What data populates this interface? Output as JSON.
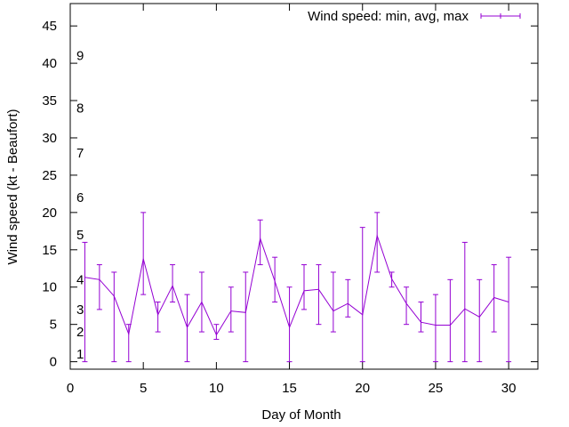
{
  "chart_data": {
    "type": "line",
    "title": "",
    "xlabel": "Day of Month",
    "ylabel": "Wind speed (kt - Beaufort)",
    "xlim": [
      0,
      32
    ],
    "ylim": [
      -1,
      48
    ],
    "xticks": [
      0,
      5,
      10,
      15,
      20,
      25,
      30
    ],
    "xtick_labels": [
      "0",
      "5",
      "10",
      "15",
      "20",
      "25",
      "30"
    ],
    "yticks": [
      0,
      5,
      10,
      15,
      20,
      25,
      30,
      35,
      40,
      45
    ],
    "ytick_labels": [
      "0",
      "5",
      "10",
      "15",
      "20",
      "25",
      "30",
      "35",
      "40",
      "45"
    ],
    "grid": false,
    "legend_position": "top-right",
    "series_color": "#9400d3",
    "series": [
      {
        "name": "Wind speed: min, avg, max",
        "x": [
          1,
          2,
          3,
          4,
          5,
          6,
          7,
          8,
          9,
          10,
          11,
          12,
          13,
          14,
          15,
          16,
          17,
          18,
          19,
          20,
          21,
          22,
          23,
          24,
          25,
          26,
          27,
          28,
          29,
          30
        ],
        "avg": [
          11.3,
          11,
          8.8,
          3.7,
          13.8,
          6.3,
          10.2,
          4.6,
          8,
          3.6,
          6.8,
          6.6,
          16.5,
          10.8,
          4.6,
          9.5,
          9.7,
          6.8,
          7.8,
          6.3,
          16.9,
          11.1,
          7.8,
          5.3,
          4.9,
          4.9,
          7.1,
          6,
          8.6,
          8
        ],
        "min": [
          0,
          7,
          0,
          0,
          9,
          4,
          8,
          0,
          4,
          3,
          4,
          0,
          13,
          8,
          0,
          7,
          5,
          4,
          6,
          0,
          12,
          10,
          5,
          4,
          0,
          0,
          0,
          0,
          4,
          0
        ],
        "max": [
          16,
          13,
          12,
          5,
          20,
          8,
          13,
          9,
          12,
          5,
          10,
          12,
          19,
          14,
          10,
          13,
          13,
          12,
          11,
          18,
          20,
          12,
          10,
          8,
          9,
          11,
          16,
          11,
          13,
          14
        ]
      }
    ],
    "beaufort_labels": [
      {
        "text": "1",
        "y": 1
      },
      {
        "text": "2",
        "y": 4
      },
      {
        "text": "3",
        "y": 7
      },
      {
        "text": "4",
        "y": 11
      },
      {
        "text": "5",
        "y": 17
      },
      {
        "text": "6",
        "y": 22
      },
      {
        "text": "7",
        "y": 28
      },
      {
        "text": "8",
        "y": 34
      },
      {
        "text": "9",
        "y": 41
      }
    ]
  }
}
